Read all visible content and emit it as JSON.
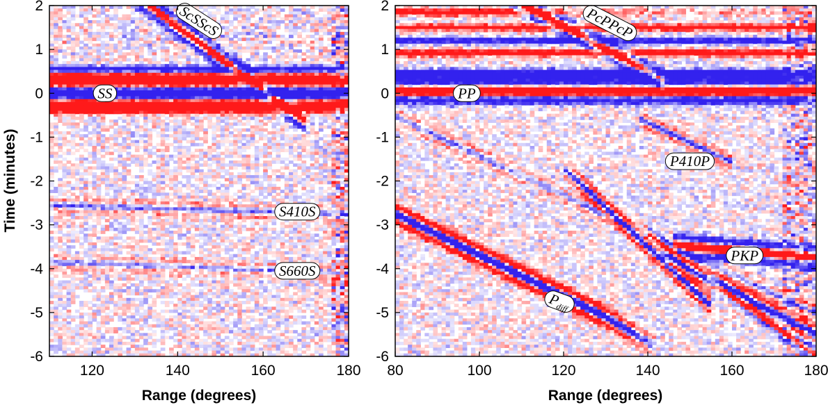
{
  "colors": {
    "positive": "#ff1a1a",
    "negative": "#3322ee",
    "background": "#ffffff"
  },
  "y_axis": {
    "label": "Time (minutes)"
  },
  "chart_data": [
    {
      "type": "heatmap",
      "xlabel": "Range (degrees)",
      "ylabel": "Time (minutes)",
      "xlim": [
        110,
        180
      ],
      "ylim": [
        -6,
        2
      ],
      "x_ticks": [
        120,
        140,
        160,
        180
      ],
      "y_ticks": [
        2,
        1,
        0,
        -1,
        -2,
        -3,
        -4,
        -5,
        -6
      ],
      "annotations": [
        {
          "label": "ScSScS",
          "x": 145,
          "y": 1.65,
          "angle": 33
        },
        {
          "label": "SS",
          "x": 123,
          "y": 0.0
        },
        {
          "label": "S410S",
          "x": 168,
          "y": -2.7
        },
        {
          "label": "S660S",
          "x": 168,
          "y": -4.05
        }
      ]
    },
    {
      "type": "heatmap",
      "xlabel": "Range (degrees)",
      "ylabel": "",
      "xlim": [
        80,
        180
      ],
      "ylim": [
        -6,
        2
      ],
      "x_ticks": [
        80,
        100,
        120,
        140,
        160,
        180
      ],
      "y_ticks": [
        2,
        1,
        0,
        -1,
        -2,
        -3,
        -4,
        -5,
        -6
      ],
      "annotations": [
        {
          "label": "PcPPcP",
          "x": 131,
          "y": 1.6,
          "angle": 27
        },
        {
          "label": "PP",
          "x": 97,
          "y": 0.0
        },
        {
          "label": "P410P",
          "x": 150,
          "y": -1.55
        },
        {
          "label": "PKP",
          "x": 163,
          "y": -3.7
        },
        {
          "label": "P",
          "sub": "diff",
          "x": 119,
          "y": -4.75,
          "angle": 20
        }
      ]
    }
  ]
}
